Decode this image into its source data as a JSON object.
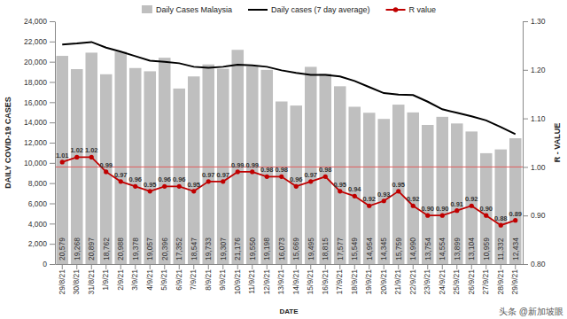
{
  "chart_data": {
    "type": "bar",
    "categories": [
      "29/8/21",
      "30/8/21",
      "31/8/21",
      "1/9/21",
      "2/9/21",
      "3/9/21",
      "4/9/21",
      "5/9/21",
      "6/9/21",
      "7/9/21",
      "8/9/21",
      "9/9/21",
      "10/9/21",
      "11/9/21",
      "12/9/21",
      "13/9/21",
      "14/9/21",
      "15/9/21",
      "16/9/21",
      "17/9/21",
      "18/9/21",
      "19/9/21",
      "20/9/21",
      "21/9/21",
      "22/9/21",
      "23/9/21",
      "24/9/21",
      "25/9/21",
      "26/9/21",
      "27/9/21",
      "28/9/21",
      "29/9/21"
    ],
    "series": [
      {
        "name": "Daily Cases Malaysia",
        "type": "bar",
        "color": "#bfbfbf",
        "data_labels": true,
        "values": [
          20579,
          19268,
          20897,
          18762,
          20988,
          19378,
          19057,
          20396,
          17352,
          18547,
          19733,
          19307,
          21176,
          19550,
          19198,
          16073,
          15669,
          19495,
          18815,
          17577,
          15549,
          14954,
          14345,
          15759,
          14990,
          13754,
          14554,
          13899,
          13104,
          10959,
          11332,
          12434
        ],
        "value_labels": [
          "20,579",
          "19,268",
          "20,897",
          "18,762",
          "20,988",
          "19,378",
          "19,057",
          "20,396",
          "17,352",
          "18,547",
          "19,733",
          "19,307",
          "21,176",
          "19,550",
          "19,198",
          "16,073",
          "15,669",
          "19,495",
          "18,815",
          "17,577",
          "15,549",
          "14,954",
          "14,345",
          "15,759",
          "14,990",
          "13,754",
          "14,554",
          "13,899",
          "13,104",
          "10,959",
          "11,332",
          "12,434"
        ]
      },
      {
        "name": "Daily cases (7 day average)",
        "type": "line",
        "color": "#000000",
        "values": [
          21700,
          21800,
          21950,
          21400,
          21000,
          20550,
          20100,
          20000,
          19850,
          19500,
          19400,
          19500,
          19700,
          19650,
          19500,
          19150,
          18900,
          18700,
          18700,
          18550,
          18100,
          17500,
          16900,
          16750,
          16700,
          16050,
          15300,
          14950,
          14600,
          14200,
          13550,
          12850
        ]
      },
      {
        "name": "R value",
        "type": "line",
        "color": "#c00000",
        "marker": "circle",
        "axis": "y2",
        "data_labels": true,
        "values": [
          1.01,
          1.02,
          1.02,
          0.99,
          0.97,
          0.96,
          0.95,
          0.96,
          0.96,
          0.95,
          0.97,
          0.97,
          0.99,
          0.99,
          0.98,
          0.98,
          0.96,
          0.97,
          0.98,
          0.95,
          0.94,
          0.92,
          0.93,
          0.95,
          0.92,
          0.9,
          0.9,
          0.91,
          0.92,
          0.9,
          0.88,
          0.89
        ],
        "value_labels": [
          "1.01",
          "1.02",
          "1.02",
          "0.99",
          "0.97",
          "0.96",
          "0.95",
          "0.96",
          "0.96",
          "0.95",
          "0.97",
          "0.97",
          "0.99",
          "0.99",
          "0.98",
          "0.98",
          "0.96",
          "0.97",
          "0.98",
          "0.95",
          "0.94",
          "0.92",
          "0.93",
          "0.95",
          "0.92",
          "0.90",
          "0.90",
          "0.91",
          "0.92",
          "0.90",
          "0.88",
          "0.89"
        ]
      }
    ],
    "x_label": "DATE",
    "y_label": "DAILY COVID-19 CASES",
    "y2_label": "R - VALUE",
    "ylim": [
      0,
      24000
    ],
    "yticks": [
      0,
      {
        "value": 2000,
        "label": "2,000"
      },
      {
        "value": 4000,
        "label": "4,000"
      },
      {
        "value": 6000,
        "label": "6,000"
      },
      {
        "value": 8000,
        "label": "8,000"
      },
      {
        "value": 10000,
        "label": "10,000"
      },
      {
        "value": 12000,
        "label": "12,000"
      },
      {
        "value": 14000,
        "label": "14,000"
      },
      {
        "value": 16000,
        "label": "16,000"
      },
      {
        "value": 18000,
        "label": "18,000"
      },
      {
        "value": 20000,
        "label": "20,000"
      },
      {
        "value": 22000,
        "label": "22,000"
      },
      {
        "value": 24000,
        "label": "24,000"
      }
    ],
    "y2lim": [
      0.8,
      1.3
    ],
    "y2ticks": [
      {
        "value": 0.8,
        "label": "0.80"
      },
      {
        "value": 0.9,
        "label": "0.90"
      },
      {
        "value": 1.0,
        "label": "1.00"
      },
      {
        "value": 1.1,
        "label": "1.10"
      },
      {
        "value": 1.2,
        "label": "1.20"
      },
      {
        "value": 1.3,
        "label": "1.30"
      }
    ],
    "reference_line": {
      "value": 1.0,
      "axis": "y2",
      "color": "#e06060"
    },
    "grid": false,
    "legend": "top",
    "annotations": [
      {
        "text": "头条 @新加坡眼"
      }
    ]
  }
}
